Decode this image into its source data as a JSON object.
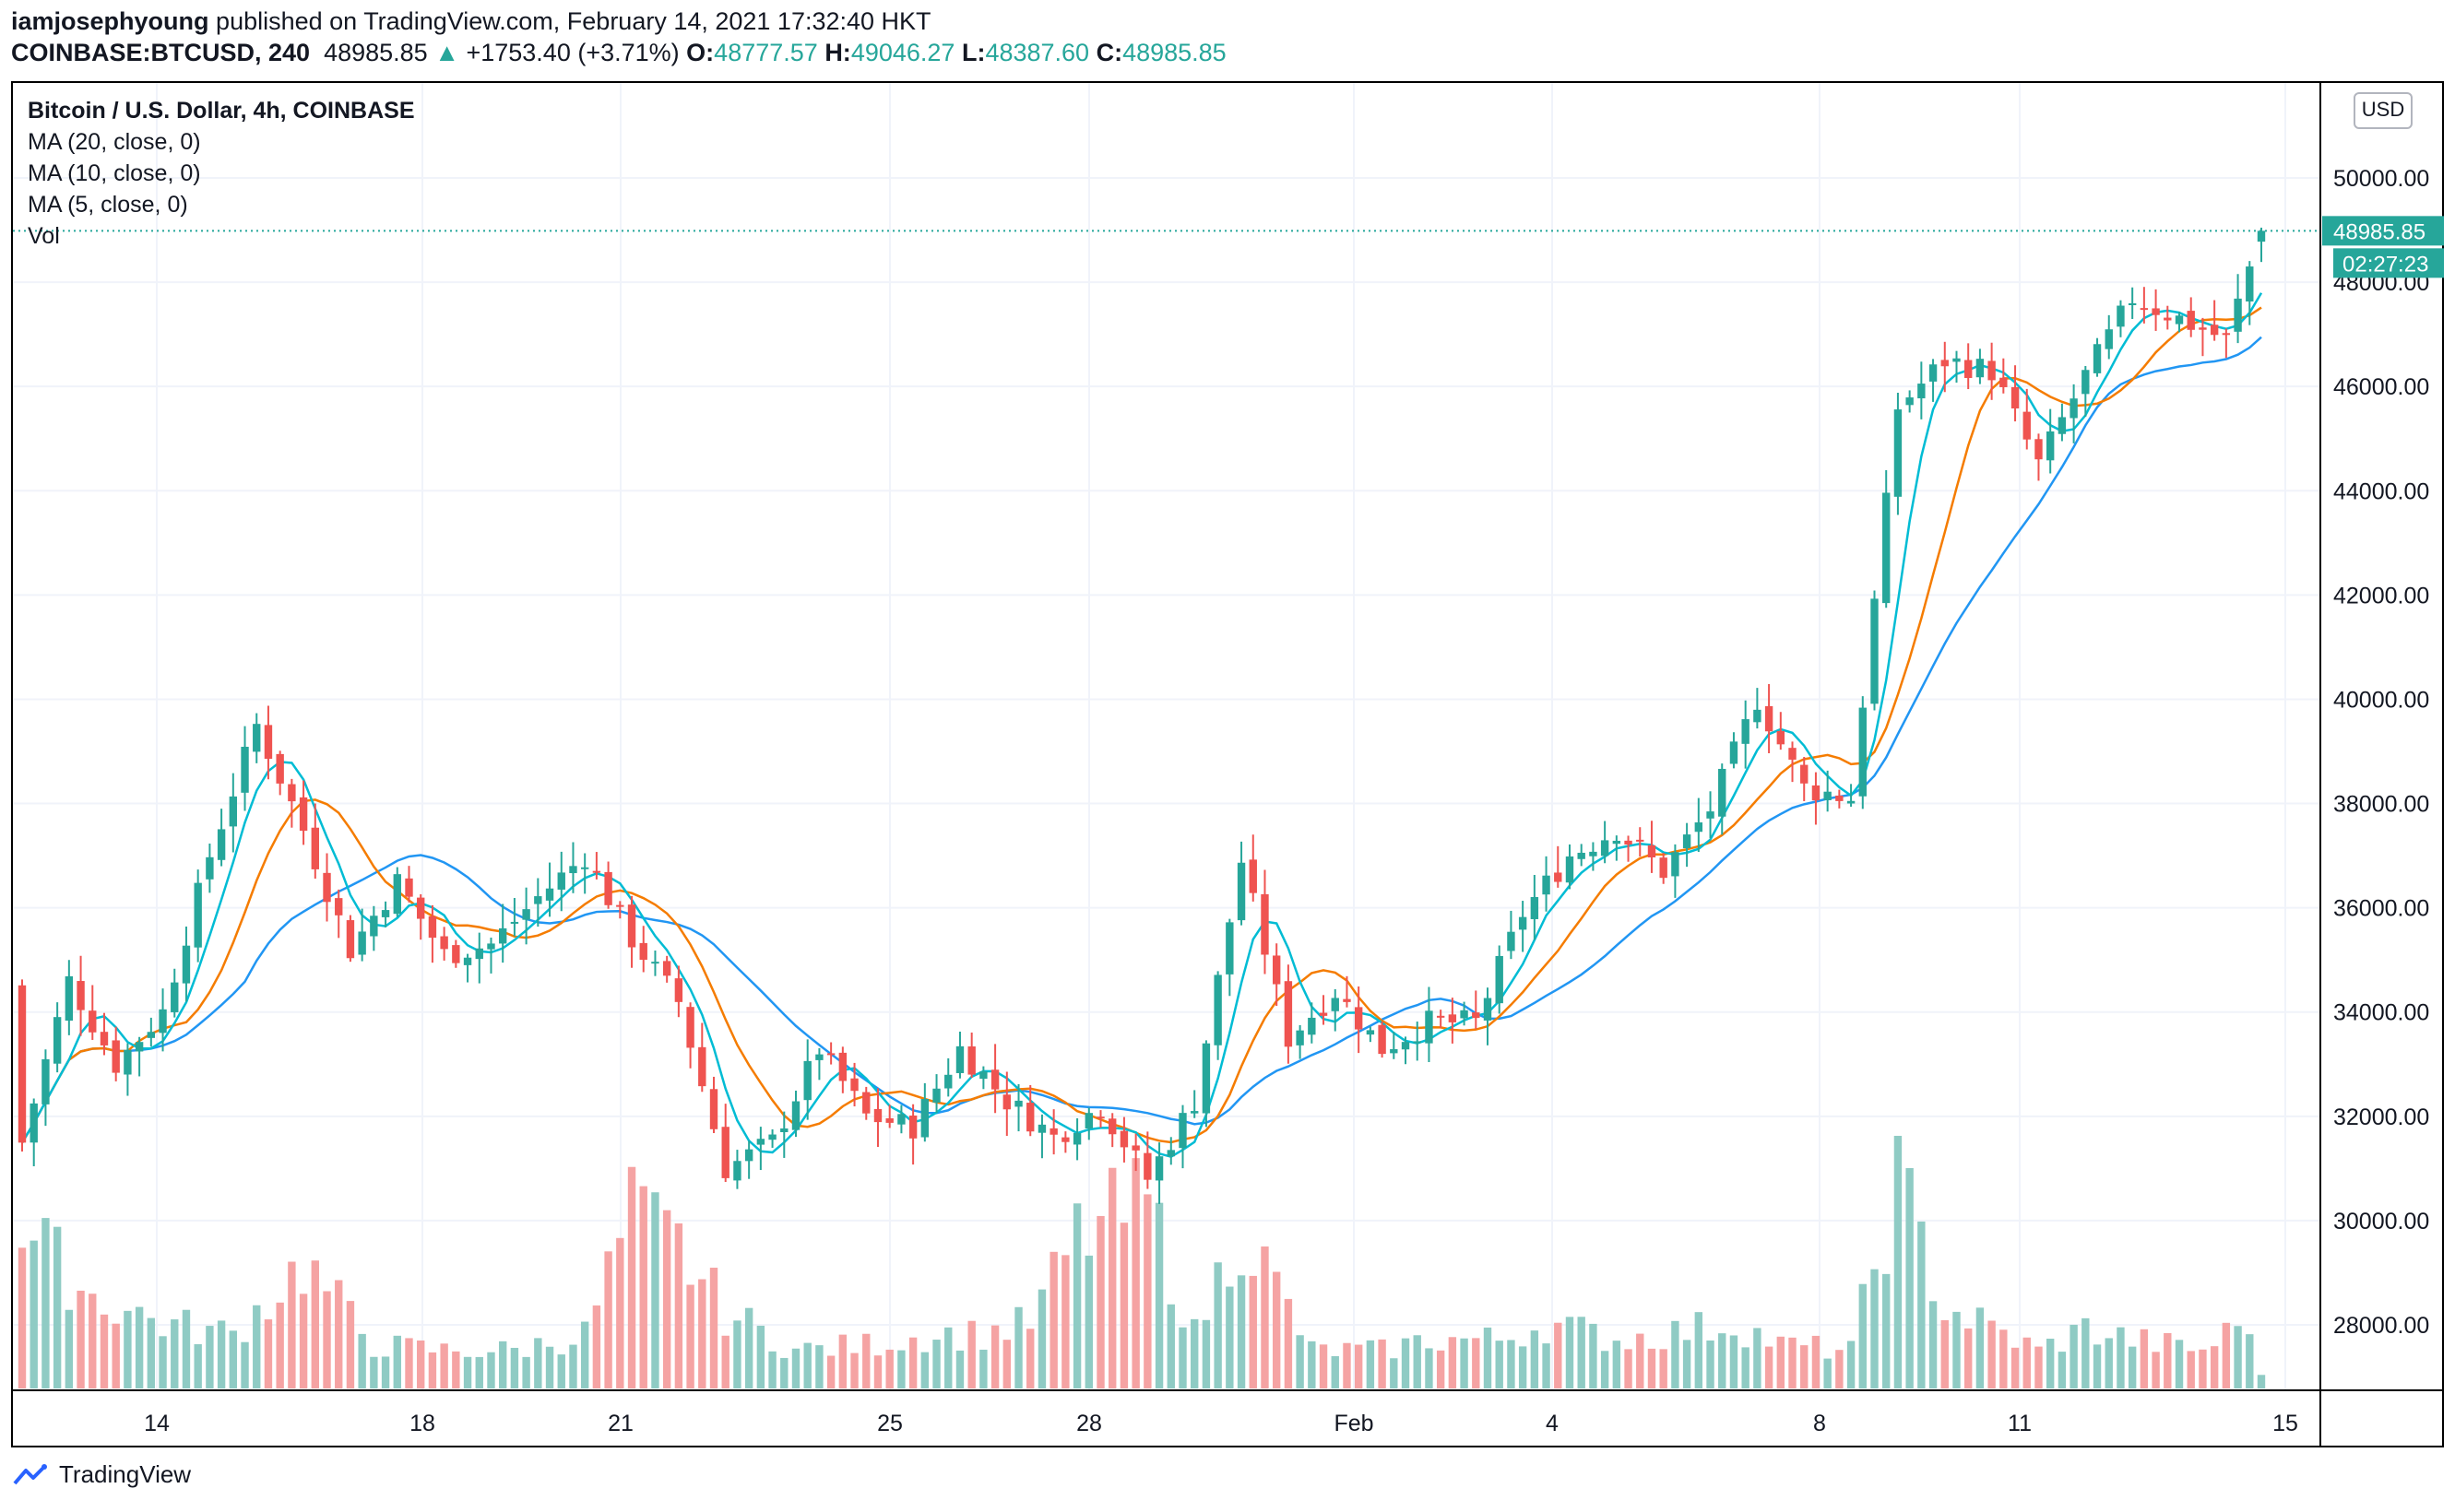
{
  "header": {
    "author": "iamjosephyoung",
    "published": "published on TradingView.com, February 14, 2021 17:32:40 HKT",
    "symbol": "COINBASE:BTCUSD, 240",
    "last": "48985.85",
    "change": "+1753.40 (+3.71%)",
    "o_label": "O:",
    "o": "48777.57",
    "h_label": "H:",
    "h": "49046.27",
    "l_label": "L:",
    "l": "48387.60",
    "c_label": "C:",
    "c": "48985.85"
  },
  "legend": {
    "title": "Bitcoin / U.S. Dollar, 4h, COINBASE",
    "ma20": "MA (20, close, 0)",
    "ma10": "MA (10, close, 0)",
    "ma5": "MA (5, close, 0)",
    "vol": "Vol"
  },
  "currency_button": "USD",
  "price_tag": "48985.85",
  "countdown_tag": "02:27:23",
  "footer_brand": "TradingView",
  "icons": {
    "brand": "tradingview-logo-icon",
    "up_arrow": "up-triangle-icon"
  },
  "colors": {
    "up": "#26a69a",
    "down": "#ef5350",
    "vol_up": "#8fcbc4",
    "vol_down": "#f5a3a3",
    "ma20": "#2196f3",
    "ma10": "#f57c00",
    "ma5": "#00bcd4"
  },
  "chart_data": {
    "type": "candlestick",
    "y_ticks": [
      "28000.00",
      "30000.00",
      "32000.00",
      "34000.00",
      "36000.00",
      "38000.00",
      "40000.00",
      "42000.00",
      "44000.00",
      "46000.00",
      "48000.00",
      "50000.00"
    ],
    "x_ticks": [
      "14",
      "18",
      "21",
      "25",
      "28",
      "Feb",
      "4",
      "8",
      "11",
      "15"
    ],
    "ylim": [
      26800,
      51000
    ],
    "last_price": 48985.85,
    "ohlc_anchors": [
      [
        0,
        34500,
        31500
      ],
      [
        4,
        35500,
        34600
      ],
      [
        8,
        34200,
        33000
      ],
      [
        12,
        35800,
        34000
      ],
      [
        16,
        38200,
        37000
      ],
      [
        20,
        39800,
        39500
      ],
      [
        24,
        38600,
        37500
      ],
      [
        28,
        35600,
        35200
      ],
      [
        32,
        37500,
        36500
      ],
      [
        36,
        35400,
        35100
      ],
      [
        40,
        35700,
        35300
      ],
      [
        44,
        36800,
        36200
      ],
      [
        48,
        37800,
        37000
      ],
      [
        52,
        36200,
        35400
      ],
      [
        56,
        34600,
        34200
      ],
      [
        60,
        31800,
        31000
      ],
      [
        64,
        30800,
        31500
      ],
      [
        68,
        33600,
        33300
      ],
      [
        72,
        32300,
        32000
      ],
      [
        76,
        32300,
        31800
      ],
      [
        80,
        33600,
        33300
      ],
      [
        84,
        33200,
        32300
      ],
      [
        88,
        31800,
        31600
      ],
      [
        92,
        31900,
        32200
      ],
      [
        96,
        30300,
        30800
      ],
      [
        100,
        31900,
        32300
      ],
      [
        104,
        34800,
        36900
      ],
      [
        108,
        33900,
        33500
      ],
      [
        112,
        33800,
        34400
      ],
      [
        116,
        33000,
        33300
      ],
      [
        120,
        33700,
        33800
      ],
      [
        124,
        34200,
        33800
      ],
      [
        128,
        35700,
        35900
      ],
      [
        132,
        36500,
        37000
      ],
      [
        136,
        37600,
        37500
      ],
      [
        140,
        36600,
        36700
      ],
      [
        144,
        37600,
        37900
      ],
      [
        148,
        39900,
        40000
      ],
      [
        152,
        38000,
        38300
      ],
      [
        156,
        37900,
        38100
      ],
      [
        160,
        43800,
        45600
      ],
      [
        164,
        47300,
        46500
      ],
      [
        168,
        46700,
        46300
      ],
      [
        172,
        44400,
        44500
      ],
      [
        176,
        45900,
        46200
      ],
      [
        180,
        47800,
        47700
      ],
      [
        184,
        47600,
        47300
      ],
      [
        188,
        47200,
        46900
      ],
      [
        191,
        48800,
        48986
      ]
    ],
    "volume_anchors": [
      [
        0,
        2900
      ],
      [
        6,
        1700
      ],
      [
        12,
        1200
      ],
      [
        18,
        1000
      ],
      [
        24,
        2300
      ],
      [
        30,
        800
      ],
      [
        36,
        700
      ],
      [
        42,
        700
      ],
      [
        48,
        1000
      ],
      [
        52,
        3200
      ],
      [
        56,
        2600
      ],
      [
        60,
        1400
      ],
      [
        66,
        700
      ],
      [
        72,
        800
      ],
      [
        78,
        1000
      ],
      [
        82,
        1000
      ],
      [
        86,
        1200
      ],
      [
        90,
        2800
      ],
      [
        96,
        3400
      ],
      [
        100,
        1000
      ],
      [
        104,
        3000
      ],
      [
        110,
        700
      ],
      [
        116,
        700
      ],
      [
        120,
        900
      ],
      [
        126,
        900
      ],
      [
        130,
        1200
      ],
      [
        136,
        900
      ],
      [
        140,
        1000
      ],
      [
        146,
        1200
      ],
      [
        150,
        800
      ],
      [
        156,
        700
      ],
      [
        160,
        3800
      ],
      [
        164,
        1500
      ],
      [
        168,
        1100
      ],
      [
        172,
        700
      ],
      [
        176,
        1100
      ],
      [
        180,
        900
      ],
      [
        186,
        700
      ],
      [
        190,
        1300
      ],
      [
        191,
        200
      ]
    ]
  }
}
